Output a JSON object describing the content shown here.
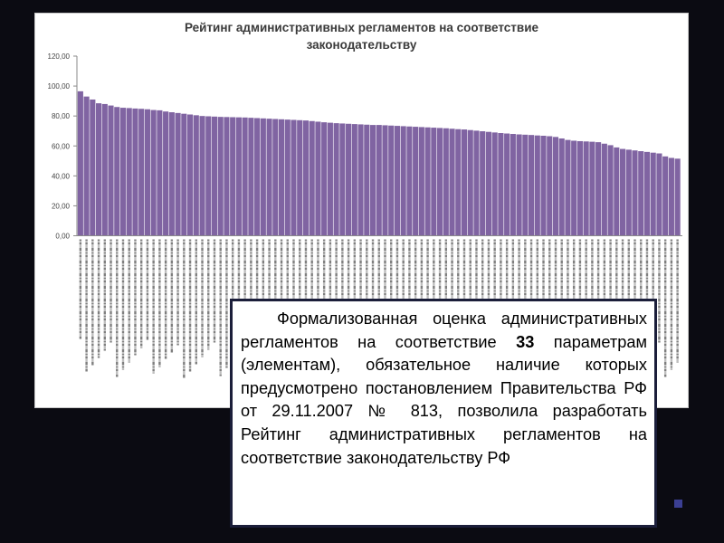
{
  "colors": {
    "bar": "#8064a2",
    "bar_edge": "#6a4f8e",
    "background": "#0b0b12",
    "textbox_border": "#1b1e3a",
    "nav_square": "#3b3f93"
  },
  "chart_data": {
    "type": "bar",
    "title": "Рейтинг административных регламентов на соответствие законодательству",
    "title_lines": [
      "Рейтинг административных регламентов на соответствие",
      "законодательству"
    ],
    "ylim": [
      0,
      120
    ],
    "yticks": [
      "0,00",
      "20,00",
      "40,00",
      "60,00",
      "80,00",
      "100,00",
      "120,00"
    ],
    "grid": false,
    "legend": "none",
    "values": [
      96.5,
      93.0,
      91.0,
      88.5,
      88.0,
      87.0,
      86.0,
      85.5,
      85.3,
      85.0,
      84.8,
      84.5,
      84.0,
      83.8,
      83.0,
      82.5,
      82.0,
      81.5,
      81.0,
      80.5,
      80.0,
      79.8,
      79.6,
      79.4,
      79.3,
      79.2,
      79.1,
      79.0,
      78.8,
      78.6,
      78.4,
      78.2,
      78.0,
      77.8,
      77.6,
      77.4,
      77.2,
      77.0,
      76.6,
      76.2,
      75.8,
      75.5,
      75.2,
      75.0,
      74.8,
      74.6,
      74.4,
      74.2,
      74.0,
      74.0,
      73.8,
      73.6,
      73.4,
      73.2,
      73.0,
      72.8,
      72.6,
      72.4,
      72.2,
      72.0,
      71.8,
      71.5,
      71.2,
      71.0,
      70.6,
      70.2,
      69.8,
      69.4,
      69.0,
      68.6,
      68.3,
      68.0,
      67.7,
      67.5,
      67.3,
      67.0,
      66.8,
      66.5,
      66.0,
      65.0,
      64.0,
      63.5,
      63.2,
      63.0,
      62.8,
      62.5,
      61.5,
      60.5,
      59.0,
      58.0,
      57.5,
      57.0,
      56.5,
      56.0,
      55.5,
      55.0,
      53.0,
      52.0,
      51.5
    ]
  },
  "textbox": {
    "before_bold": "Формализованная оценка административных регламентов на соответствие ",
    "bold": "33",
    "after_bold": " параметрам (элементам), обязательное наличие которых предусмотрено постановлением Правительства РФ от 29.11.2007 № 813, позволила разработать Рейтинг административных регламентов на соответствие законодательству РФ"
  }
}
